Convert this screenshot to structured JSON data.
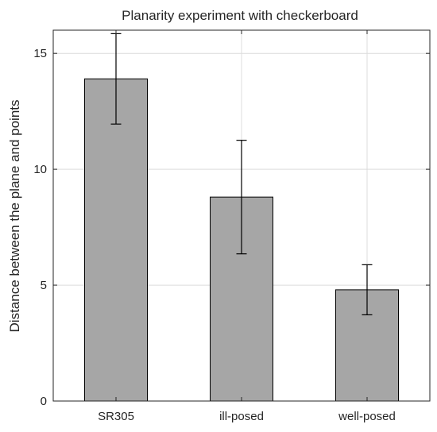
{
  "chart_data": {
    "type": "bar",
    "title": "Planarity experiment with checkerboard",
    "xlabel": "",
    "ylabel": "Distance between the plane and points",
    "categories": [
      "SR305",
      "ill-posed",
      "well-posed"
    ],
    "values": [
      13.9,
      8.8,
      4.8
    ],
    "error_low": [
      11.95,
      6.35,
      3.72
    ],
    "error_high": [
      15.85,
      11.25,
      5.88
    ],
    "ylim": [
      0,
      16
    ],
    "yticks": [
      0,
      5,
      10,
      15
    ],
    "grid": true,
    "bar_color": "#a6a6a6",
    "edge_color": "#000000",
    "grid_color": "#dcdcdc",
    "axis_color": "#262626"
  }
}
